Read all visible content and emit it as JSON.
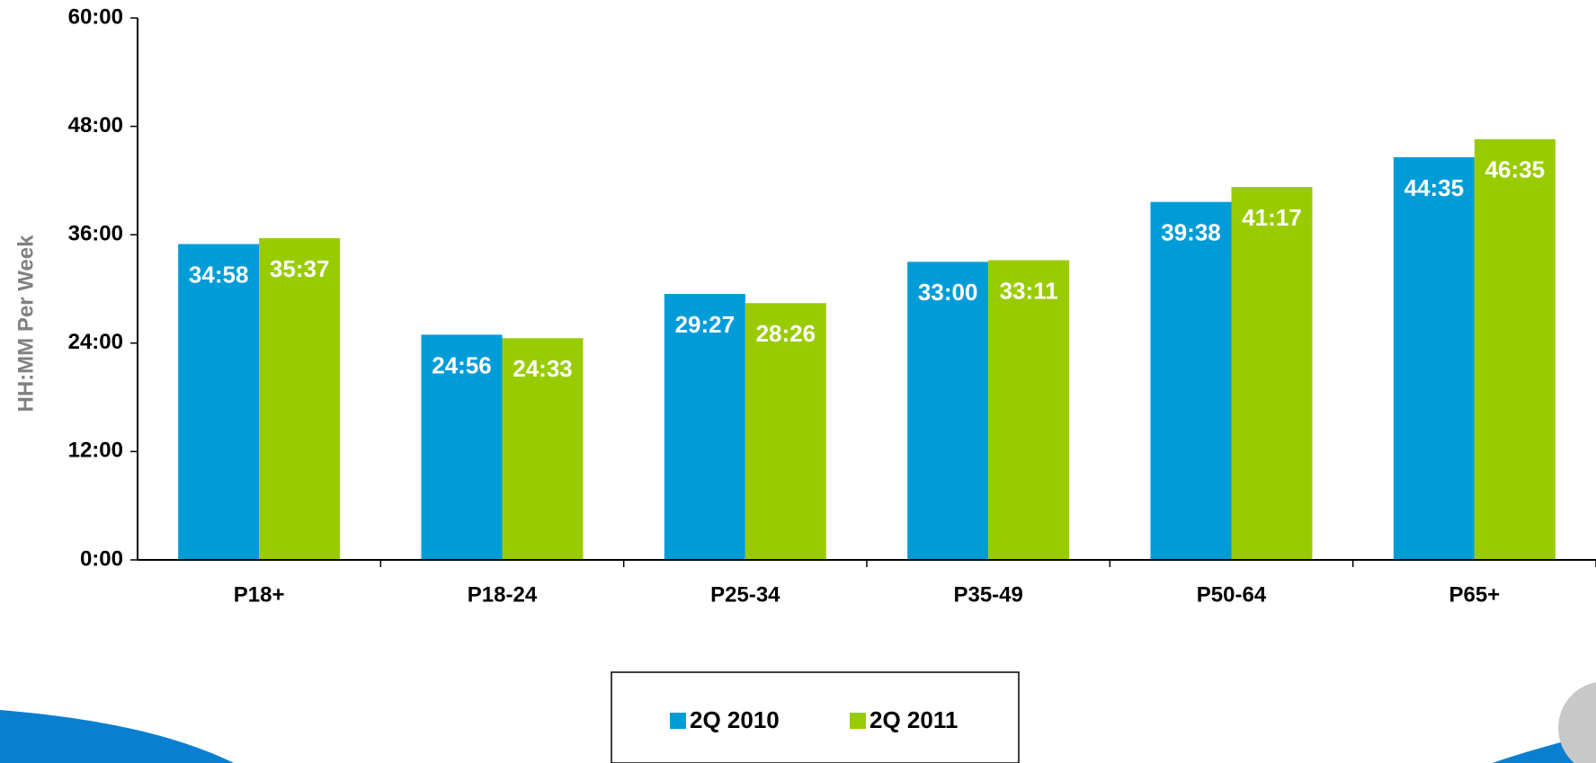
{
  "chart_data": {
    "type": "bar",
    "y_axis_label": "HH:MM Per Week",
    "categories": [
      "P18+",
      "P18-24",
      "P25-34",
      "P35-49",
      "P50-64",
      "P65+"
    ],
    "series": [
      {
        "name": "2Q 2010",
        "color": "#009cd8",
        "values": [
          34.9667,
          24.9333,
          29.45,
          33,
          39.6333,
          44.5833
        ],
        "value_labels": [
          "34:58",
          "24:56",
          "29:27",
          "33:00",
          "39:38",
          "44:35"
        ]
      },
      {
        "name": "2Q 2011",
        "color": "#99cc00",
        "values": [
          35.6167,
          24.55,
          28.4333,
          33.1833,
          41.2833,
          46.5833
        ],
        "value_labels": [
          "35:37",
          "24:33",
          "28:26",
          "33:11",
          "41:17",
          "46:35"
        ]
      }
    ],
    "ylim": [
      0,
      60
    ],
    "yticks": [
      {
        "value": 0,
        "label": "0:00"
      },
      {
        "value": 12,
        "label": "12:00"
      },
      {
        "value": 24,
        "label": "24:00"
      },
      {
        "value": 36,
        "label": "36:00"
      },
      {
        "value": 48,
        "label": "48:00"
      },
      {
        "value": 60,
        "label": "60:00"
      }
    ],
    "legend": "bottom"
  }
}
